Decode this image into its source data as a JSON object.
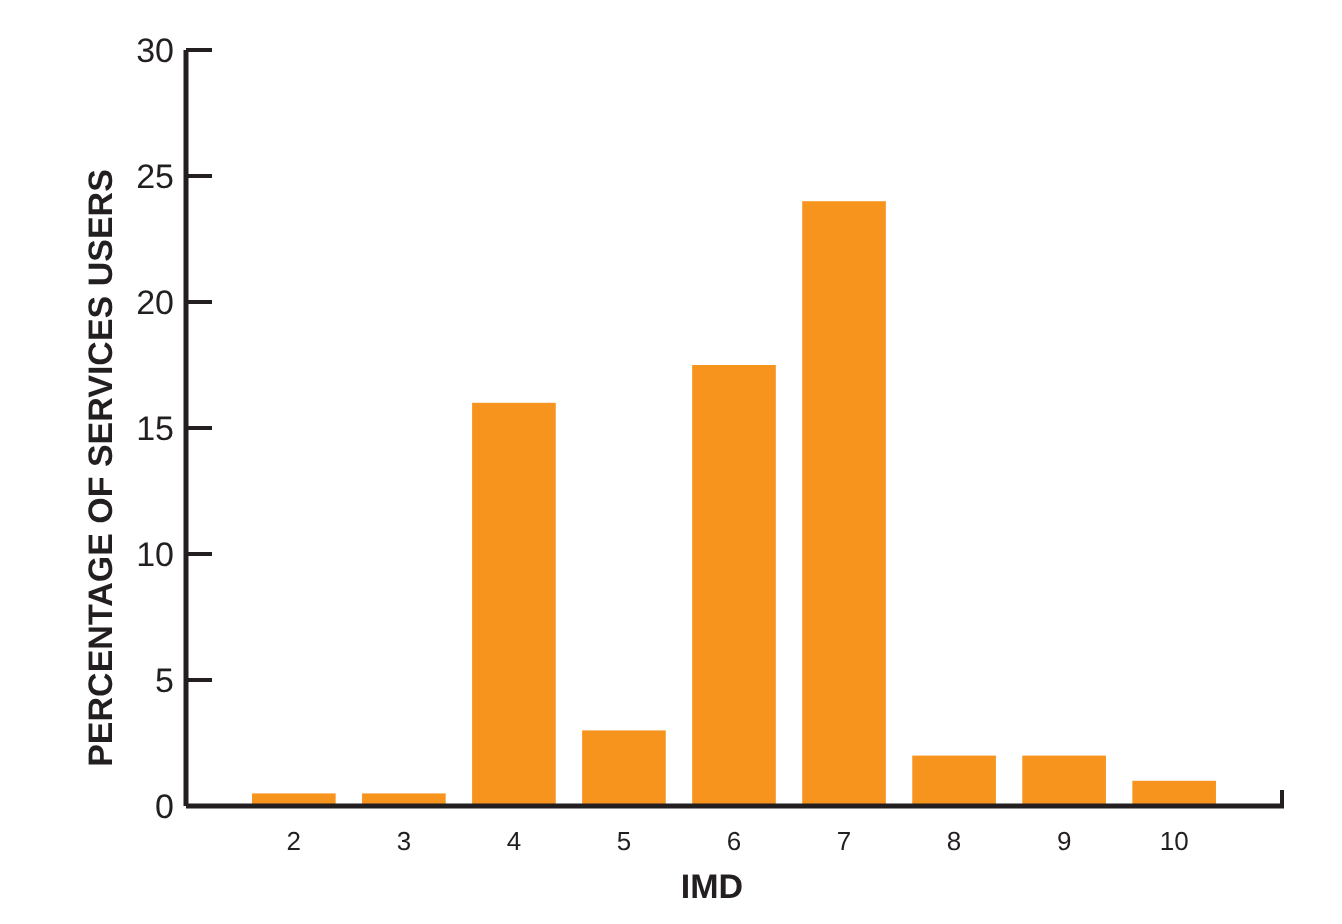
{
  "chart_data": {
    "type": "bar",
    "xlabel": "IMD",
    "ylabel": "PERCENTAGE OF SERVICES USERS",
    "categories": [
      "2",
      "3",
      "4",
      "5",
      "6",
      "7",
      "8",
      "9",
      "10"
    ],
    "values": [
      0.5,
      0.5,
      16,
      3,
      17.5,
      24,
      2,
      2,
      1
    ],
    "color": "#f7941e",
    "ylim": [
      0,
      30
    ],
    "yticks": [
      0,
      5,
      10,
      15,
      20,
      25,
      30
    ]
  }
}
